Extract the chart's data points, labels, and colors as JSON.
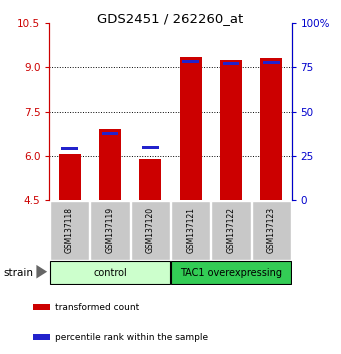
{
  "title": "GDS2451 / 262260_at",
  "samples": [
    "GSM137118",
    "GSM137119",
    "GSM137120",
    "GSM137121",
    "GSM137122",
    "GSM137123"
  ],
  "red_values": [
    6.07,
    6.9,
    5.88,
    9.35,
    9.25,
    9.3
  ],
  "blue_values": [
    6.25,
    6.75,
    6.27,
    9.18,
    9.12,
    9.15
  ],
  "y_min": 4.5,
  "y_max": 10.5,
  "y_ticks": [
    4.5,
    6.0,
    7.5,
    9.0,
    10.5
  ],
  "right_y_ticks_labels": [
    "0",
    "25",
    "50",
    "75",
    "100%"
  ],
  "right_y_tick_positions": [
    4.5,
    6.0,
    7.5,
    9.0,
    10.5
  ],
  "red_color": "#CC0000",
  "blue_color": "#2222CC",
  "group_labels": [
    "control",
    "TAC1 overexpressing"
  ],
  "group_bg_light": "#CCFFCC",
  "group_bg_dark": "#33CC55",
  "strain_label": "strain",
  "legend_items": [
    {
      "color": "#CC0000",
      "label": "transformed count"
    },
    {
      "color": "#2222CC",
      "label": "percentile rank within the sample"
    }
  ],
  "sample_bg_color": "#C8C8C8",
  "title_color": "#000000",
  "left_axis_color": "#CC0000",
  "right_axis_color": "#0000CC",
  "bar_width": 0.55
}
